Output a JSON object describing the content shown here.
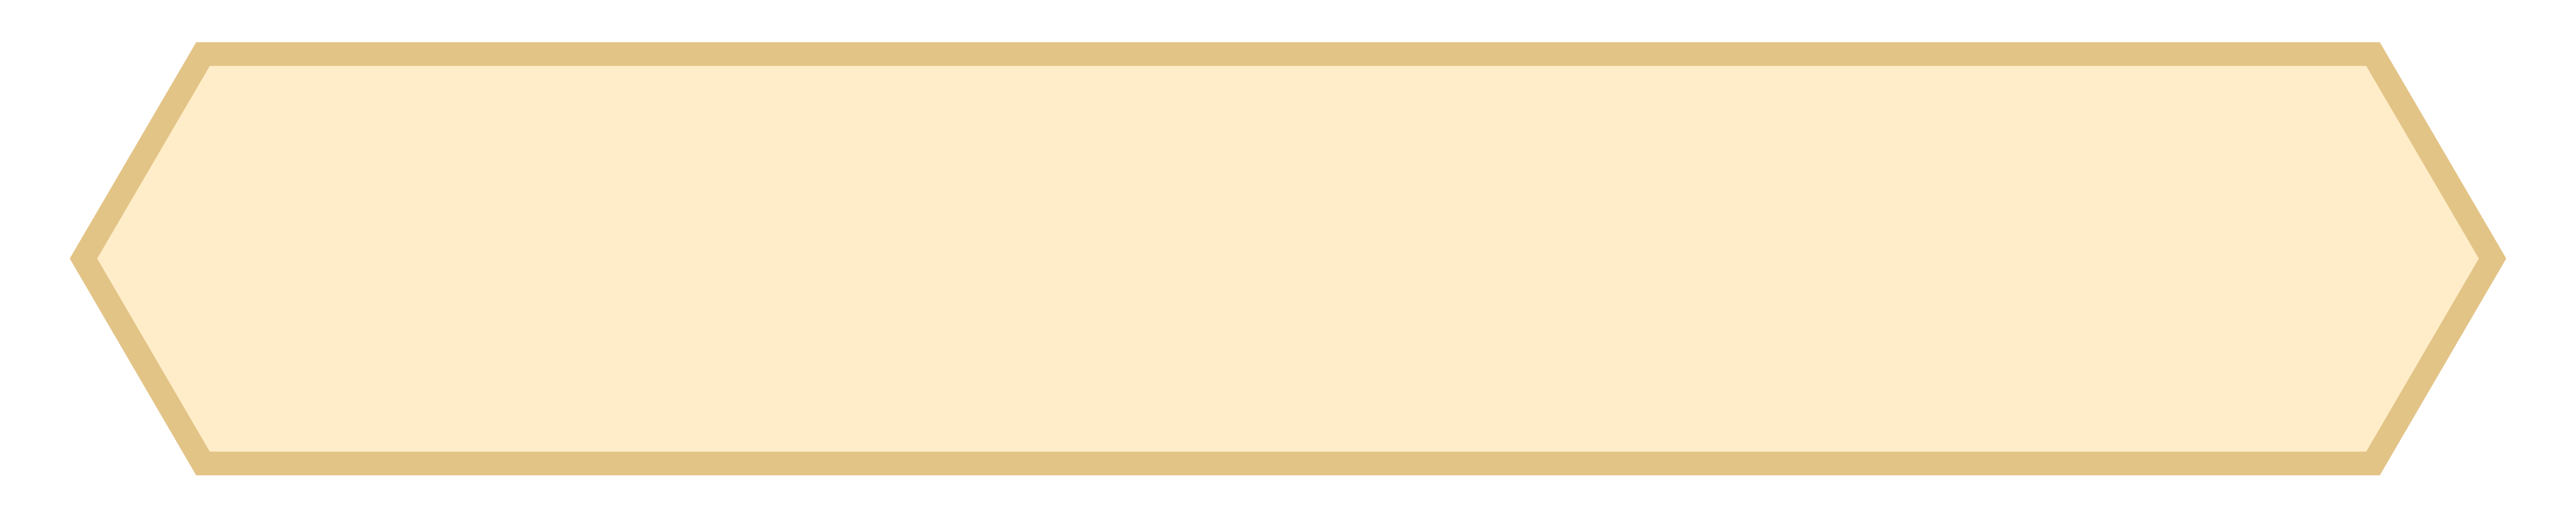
{
  "shape": {
    "kind": "hexagon",
    "fill_color": "#FEEDC8",
    "stroke_color": "#E3C487"
  }
}
